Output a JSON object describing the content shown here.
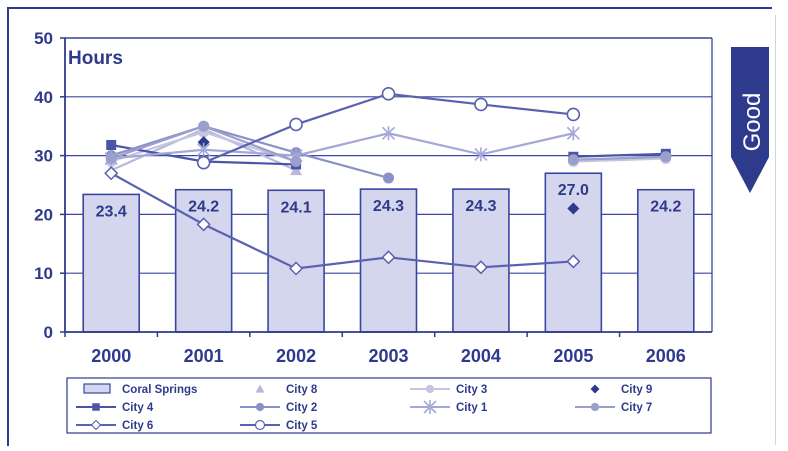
{
  "chart_data": {
    "type": "bar",
    "ylabel": "Hours",
    "ylim": [
      0,
      50
    ],
    "yticks": [
      "0",
      "10",
      "20",
      "30",
      "40",
      "50"
    ],
    "categories": [
      "2000",
      "2001",
      "2002",
      "2003",
      "2004",
      "2005",
      "2006"
    ],
    "grid": true,
    "legend_position": "bottom",
    "bar_series": {
      "name": "Coral Springs",
      "values": [
        23.4,
        24.2,
        24.1,
        24.3,
        24.3,
        27.0,
        24.2
      ],
      "labels": [
        "23.4",
        "24.2",
        "24.1",
        "24.3",
        "24.3",
        "27.0",
        "24.2"
      ],
      "color": "#d4d6ee",
      "stroke": "#3a46a0"
    },
    "line_series": [
      {
        "name": "City 8",
        "marker": "triangle",
        "color": "#b6b9da",
        "values": [
          27.5,
          34.5,
          27.5,
          null,
          null,
          null,
          null
        ]
      },
      {
        "name": "City 3",
        "marker": "circle-filled",
        "color": "#c4c6e0",
        "values": [
          29.0,
          34.0,
          29.0,
          null,
          null,
          29.0,
          29.5
        ]
      },
      {
        "name": "City 9",
        "marker": "diamond-filled",
        "color": "#2e3a8c",
        "values": [
          null,
          32.3,
          null,
          null,
          null,
          21.0,
          null
        ]
      },
      {
        "name": "City 4",
        "marker": "square",
        "color": "#4a55a8",
        "values": [
          31.8,
          29.0,
          28.5,
          null,
          null,
          29.8,
          30.3
        ]
      },
      {
        "name": "City 2",
        "marker": "circle-filled",
        "color": "#8a90c8",
        "values": [
          30.0,
          35.0,
          30.5,
          26.2,
          null,
          null,
          null
        ]
      },
      {
        "name": "City 1",
        "marker": "star",
        "color": "#a4a8d6",
        "values": [
          29.5,
          31.0,
          30.0,
          33.8,
          30.2,
          33.8,
          null
        ]
      },
      {
        "name": "City 7",
        "marker": "circle-filled",
        "color": "#9a9fcc",
        "values": [
          29.5,
          35.0,
          29.0,
          null,
          null,
          29.3,
          29.8
        ]
      },
      {
        "name": "City 6",
        "marker": "diamond-open",
        "color": "#5a62b0",
        "values": [
          27.0,
          18.3,
          10.8,
          12.7,
          11.0,
          12.0,
          null
        ]
      },
      {
        "name": "City 5",
        "marker": "circle-open",
        "color": "#5a62b0",
        "values": [
          null,
          28.8,
          35.3,
          40.5,
          38.7,
          37.0,
          null
        ]
      }
    ]
  },
  "badge": {
    "label": "Good"
  },
  "colors": {
    "axis": "#2e3a8c",
    "grid": "#3a46a0",
    "text": "#2e3a8c",
    "badge": "#2e3a8c"
  }
}
